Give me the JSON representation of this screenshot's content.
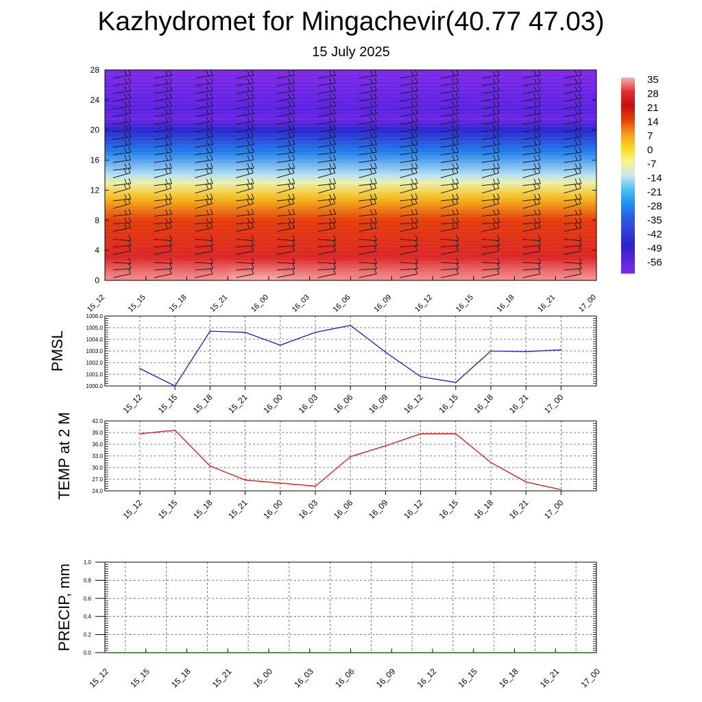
{
  "title": "Kazhydromet for Mingachevir(40.77 47.03)",
  "subtitle": "15 July 2025",
  "colors": {
    "pmsl_line": "#1a1acc",
    "temp_line": "#e01010",
    "precip_line": "#1a6e1a",
    "grid": "#555555"
  },
  "chart_data": [
    {
      "type": "heatmap",
      "title": "",
      "xlabel": "",
      "ylabel": "",
      "x_tick_labels": [
        "15_12",
        "15_15",
        "15_18",
        "15_21",
        "16_00",
        "16_03",
        "16_06",
        "16_09",
        "16_12",
        "16_15",
        "16_18",
        "16_21",
        "17_00"
      ],
      "y_tick_labels": [
        "0",
        "4",
        "8",
        "12",
        "16",
        "20",
        "24",
        "28"
      ],
      "ylim": [
        0,
        28
      ],
      "colorbar_labels": [
        "35",
        "28",
        "21",
        "14",
        "7",
        "0",
        "-7",
        "-14",
        "-21",
        "-28",
        "-35",
        "-42",
        "-49",
        "-56"
      ],
      "temperature_profile_by_height": [
        {
          "height_km": 0,
          "value": 35
        },
        {
          "height_km": 3,
          "value": 26
        },
        {
          "height_km": 8,
          "value": 14
        },
        {
          "height_km": 11,
          "value": 3
        },
        {
          "height_km": 13,
          "value": -9
        },
        {
          "height_km": 14,
          "value": -15
        },
        {
          "height_km": 17,
          "value": -30
        },
        {
          "height_km": 20,
          "value": -48
        },
        {
          "height_km": 21.5,
          "value": -58
        },
        {
          "height_km": 22.5,
          "value": -56
        },
        {
          "height_km": 28,
          "value": -60
        }
      ],
      "wind_barbs": "shown"
    },
    {
      "type": "line",
      "title": "",
      "ylabel": "PMSL",
      "xlabel": "",
      "ylim": [
        1000.0,
        1006.0
      ],
      "y_tick_labels": [
        "1000.0",
        "1001.0",
        "1002.0",
        "1003.0",
        "1004.0",
        "1005.0",
        "1006.0"
      ],
      "categories": [
        "15_12",
        "15_15",
        "15_18",
        "15_21",
        "16_00",
        "16_03",
        "16_06",
        "16_09",
        "16_12",
        "16_15",
        "16_18",
        "16_21",
        "17_00"
      ],
      "values": [
        1001.5,
        1000.0,
        1004.7,
        1004.6,
        1003.5,
        1004.6,
        1005.2,
        1002.9,
        1000.8,
        1000.3,
        1003.0,
        1002.95,
        1003.1
      ],
      "grid": true
    },
    {
      "type": "line",
      "title": "",
      "ylabel": "TEMP at 2 M",
      "xlabel": "",
      "ylim": [
        24.0,
        42.0
      ],
      "y_tick_labels": [
        "24.0",
        "27.0",
        "30.0",
        "33.0",
        "36.0",
        "39.0",
        "42.0"
      ],
      "categories": [
        "15_12",
        "15_15",
        "15_18",
        "15_21",
        "16_00",
        "16_03",
        "16_06",
        "16_09",
        "16_12",
        "16_15",
        "16_18",
        "16_21",
        "17_00"
      ],
      "values": [
        38.7,
        39.6,
        30.4,
        26.8,
        26.0,
        25.2,
        32.8,
        35.6,
        38.7,
        38.7,
        31.3,
        26.3,
        24.3
      ],
      "grid": true
    },
    {
      "type": "line",
      "title": "",
      "ylabel": "PRECIP, mm",
      "xlabel": "",
      "ylim": [
        0.0,
        1.0
      ],
      "y_tick_labels": [
        "0.0",
        "0.2",
        "0.4",
        "0.6",
        "0.8",
        "1.0"
      ],
      "x_tick_labels": [
        "15_12",
        "15_15",
        "15_18",
        "15_21",
        "16_00",
        "16_03",
        "16_06",
        "16_09",
        "16_12",
        "16_15",
        "16_18",
        "16_21",
        "17_00"
      ],
      "values": [
        0,
        0,
        0,
        0,
        0,
        0,
        0,
        0,
        0,
        0,
        0,
        0,
        0
      ],
      "grid": true
    }
  ]
}
